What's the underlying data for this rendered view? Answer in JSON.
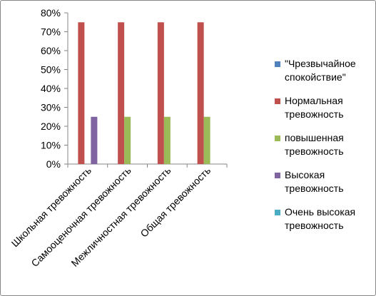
{
  "chart_data": {
    "type": "bar",
    "categories": [
      "Школьная тревожность",
      "Самооценочная тревожность",
      "Межличностная тревожность",
      "Общая тревожность"
    ],
    "series": [
      {
        "name": "\"Чрезвычайное спокойствие\"",
        "color": "#4F81BD",
        "values": [
          0,
          0,
          0,
          0
        ]
      },
      {
        "name": "Нормальная тревожность",
        "color": "#C0504D",
        "values": [
          75,
          75,
          75,
          75
        ]
      },
      {
        "name": "повышенная тревожность",
        "color": "#9BBB59",
        "values": [
          0,
          25,
          25,
          25
        ]
      },
      {
        "name": "Высокая тревожность",
        "color": "#8064A2",
        "values": [
          25,
          0,
          0,
          0
        ]
      },
      {
        "name": "Очень высокая тревожность",
        "color": "#4BACC6",
        "values": [
          0,
          0,
          0,
          0
        ]
      }
    ],
    "yticks": [
      "0%",
      "10%",
      "20%",
      "30%",
      "40%",
      "50%",
      "60%",
      "70%",
      "80%"
    ],
    "ylim": [
      0,
      80
    ],
    "legend_position": "right",
    "grid": false
  }
}
